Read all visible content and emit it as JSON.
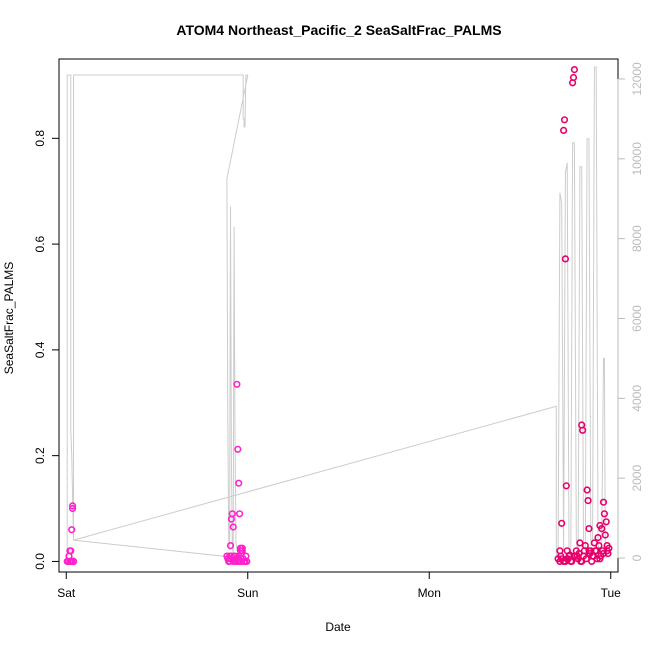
{
  "chart_data": {
    "type": "scatter",
    "title": "ATOM4 Northeast_Pacific_2 SeaSaltFrac_PALMS",
    "xlabel": "Date",
    "ylabel": "SeaSaltFrac_PALMS",
    "x_ticks": [
      {
        "label": "Sat",
        "day": 0
      },
      {
        "label": "Sun",
        "day": 1
      },
      {
        "label": "Mon",
        "day": 2
      },
      {
        "label": "Tue",
        "day": 3
      }
    ],
    "xlim_days": [
      -0.04,
      3.04
    ],
    "ylim": [
      -0.02,
      0.95
    ],
    "y_ticks": [
      0.0,
      0.2,
      0.4,
      0.6,
      0.8
    ],
    "y2lim": [
      -350,
      12500
    ],
    "y2_ticks": [
      0,
      2000,
      4000,
      6000,
      8000,
      10000,
      12000
    ],
    "grid": false,
    "colors": {
      "points_early": "#ff22cc",
      "points_late": "#e8006a",
      "secondary_line": "#cccccc",
      "right_axis": "#bbbbbb"
    },
    "series": [
      {
        "kind": "points",
        "x_day": [
          0.005,
          0.01,
          0.015,
          0.02,
          0.025,
          0.03,
          0.035,
          0.035,
          0.04,
          0.04,
          0.02,
          0.025,
          0.03,
          0.885,
          0.89,
          0.895,
          0.9,
          0.905,
          0.91,
          0.915,
          0.92,
          0.925,
          0.93,
          0.935,
          0.94,
          0.945,
          0.95,
          0.955,
          0.96,
          0.965,
          0.97,
          0.975,
          0.98,
          0.985,
          0.99,
          0.995,
          0.9,
          0.905,
          0.91,
          0.935,
          0.94,
          0.945,
          0.95,
          0.955,
          0.96,
          0.965,
          0.92,
          0.93,
          0.94,
          0.97
        ],
        "y": [
          0.0,
          0.0,
          0.01,
          0.02,
          0.02,
          0.06,
          0.1,
          0.105,
          0.0,
          0.0,
          0.0,
          0.0,
          0.0,
          0.01,
          0.005,
          0.0,
          0.01,
          0.03,
          0.08,
          0.09,
          0.065,
          0.01,
          0.0,
          0.005,
          0.335,
          0.212,
          0.148,
          0.09,
          0.025,
          0.015,
          0.02,
          0.005,
          0.0,
          0.0,
          0.01,
          0.0,
          0.0,
          0.005,
          0.01,
          0.0,
          0.005,
          0.0,
          0.01,
          0.0,
          0.02,
          0.0,
          0.0,
          0.01,
          0.005,
          0.025
        ],
        "color": "#ff22cc"
      },
      {
        "kind": "points",
        "x_day": [
          2.71,
          2.72,
          2.73,
          2.74,
          2.745,
          2.75,
          2.755,
          2.76,
          2.77,
          2.78,
          2.79,
          2.795,
          2.8,
          2.805,
          2.81,
          2.82,
          2.83,
          2.84,
          2.845,
          2.85,
          2.86,
          2.87,
          2.875,
          2.88,
          2.89,
          2.9,
          2.91,
          2.92,
          2.93,
          2.94,
          2.95,
          2.96,
          2.965,
          2.97,
          2.975,
          2.98,
          2.99,
          2.72,
          2.725,
          2.73,
          2.75,
          2.765,
          2.775,
          2.785,
          2.815,
          2.825,
          2.835,
          2.855,
          2.865,
          2.885,
          2.895,
          2.905,
          2.915,
          2.925,
          2.935,
          2.945,
          2.955,
          2.985,
          2.74,
          2.76,
          2.8,
          2.84,
          2.88,
          2.9,
          2.94,
          2.96,
          2.98
        ],
        "y": [
          0.005,
          0.02,
          0.072,
          0.815,
          0.835,
          0.572,
          0.143,
          0.02,
          0.01,
          0.0,
          0.905,
          0.915,
          0.93,
          0.01,
          0.02,
          0.005,
          0.035,
          0.258,
          0.248,
          0.01,
          0.03,
          0.135,
          0.115,
          0.062,
          0.02,
          0.01,
          0.035,
          0.02,
          0.045,
          0.068,
          0.062,
          0.112,
          0.09,
          0.05,
          0.075,
          0.03,
          0.025,
          0.0,
          0.01,
          0.005,
          0.0,
          0.005,
          0.012,
          0.0,
          0.01,
          0.015,
          0.0,
          0.02,
          0.005,
          0.015,
          0.0,
          0.01,
          0.02,
          0.005,
          0.03,
          0.01,
          0.02,
          0.015,
          0.0,
          0.005,
          0.01,
          0.0,
          0.02,
          0.01,
          0.005,
          0.015,
          0.02
        ],
        "color": "#e8006a"
      },
      {
        "kind": "line",
        "axis": "right",
        "x_day": [
          0.005,
          0.005,
          0.025,
          0.025,
          0.03,
          0.04,
          0.04,
          0.96,
          0.975,
          0.975,
          0.98,
          0.98,
          0.985,
          0.99,
          0.99,
          1.0,
          0.885,
          0.89,
          0.895,
          0.9,
          0.905,
          0.91,
          0.915,
          0.92,
          0.925,
          0.93,
          0.935,
          0.94,
          0.95,
          0.96,
          0.04,
          2.7,
          2.7,
          2.71,
          2.72,
          2.73,
          2.74,
          2.75,
          2.76,
          2.77,
          2.78,
          2.79,
          2.8,
          2.81,
          2.82,
          2.83,
          2.84,
          2.85,
          2.86,
          2.87,
          2.88,
          2.89,
          2.9,
          2.91,
          2.92,
          2.93,
          2.94,
          2.95,
          2.96,
          2.965,
          2.97,
          2.98
        ],
        "y2": [
          0,
          12100,
          12100,
          3200,
          2600,
          450,
          12100,
          12100,
          12100,
          11000,
          11000,
          10800,
          10800,
          12100,
          12100,
          12100,
          9500,
          3500,
          500,
          200,
          8800,
          2500,
          300,
          100,
          8300,
          3000,
          400,
          200,
          300,
          0,
          450,
          3800,
          0,
          100,
          9150,
          8900,
          200,
          9650,
          9900,
          200,
          0,
          10400,
          10400,
          500,
          0,
          9800,
          9800,
          300,
          200,
          10500,
          10500,
          300,
          500,
          12300,
          12300,
          400,
          100,
          300,
          5000,
          5000,
          200,
          0
        ]
      }
    ]
  }
}
